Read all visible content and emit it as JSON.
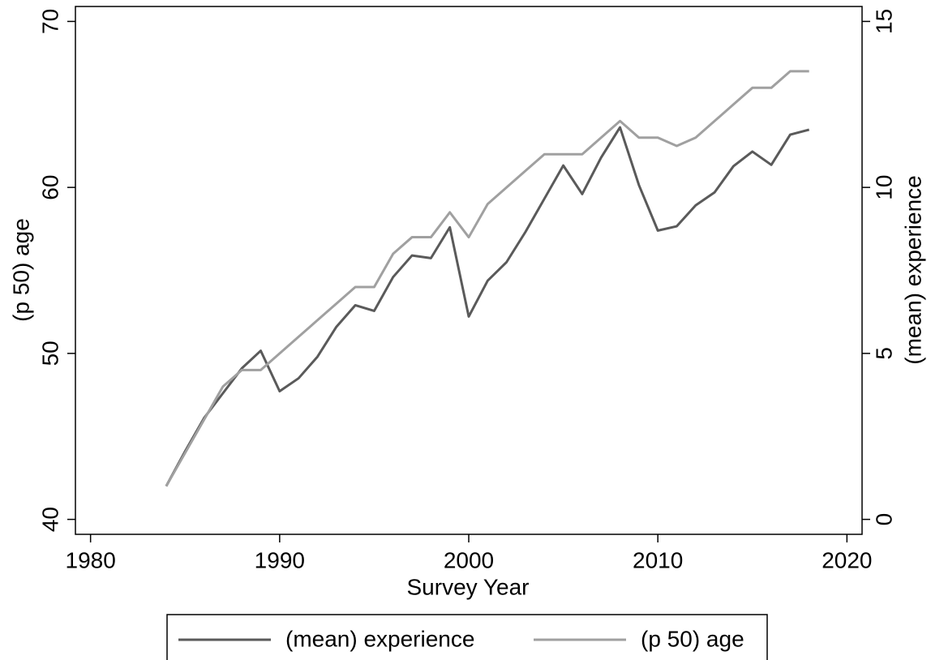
{
  "chart_data": {
    "type": "line",
    "x_label": "Survey Year",
    "y_label": "(p 50) age",
    "y2_label": "(mean) experience",
    "x": [
      1984,
      1985,
      1986,
      1987,
      1988,
      1989,
      1990,
      1991,
      1992,
      1993,
      1994,
      1995,
      1996,
      1997,
      1998,
      1999,
      2000,
      2001,
      2002,
      2003,
      2004,
      2005,
      2006,
      2007,
      2008,
      2009,
      2010,
      2011,
      2012,
      2013,
      2014,
      2015,
      2016,
      2017,
      2018
    ],
    "series": [
      {
        "name": "(mean) experience",
        "color": "#5a5a5a",
        "axis": "y2",
        "values": [
          1.0,
          2.05,
          3.05,
          3.8,
          4.55,
          5.08,
          3.86,
          4.25,
          4.9,
          5.8,
          6.45,
          6.28,
          7.3,
          7.95,
          7.87,
          8.8,
          6.11,
          7.19,
          7.75,
          8.66,
          9.66,
          10.66,
          9.8,
          10.9,
          11.81,
          10.07,
          8.7,
          8.83,
          9.46,
          9.85,
          10.64,
          11.08,
          10.68,
          11.59,
          11.74
        ]
      },
      {
        "name": "(p 50) age",
        "color": "#a0a0a0",
        "values": [
          42,
          44,
          46,
          48,
          49,
          49,
          50,
          51,
          52,
          53,
          54,
          54,
          56,
          57,
          57,
          58.5,
          57,
          59,
          60,
          61,
          62,
          62,
          62,
          63,
          64,
          63,
          63,
          62.5,
          63,
          64,
          65,
          66,
          66,
          67,
          67
        ]
      }
    ],
    "xlim": [
      1979.2,
      2020.8
    ],
    "xticks": [
      1980,
      1990,
      2000,
      2010,
      2020
    ],
    "ylim": [
      39.1,
      70.9
    ],
    "yticks": [
      40,
      50,
      60,
      70
    ],
    "y2lim": [
      -0.45,
      15.45
    ],
    "y2ticks": [
      0,
      5,
      10,
      15
    ],
    "legend": "bottom"
  }
}
